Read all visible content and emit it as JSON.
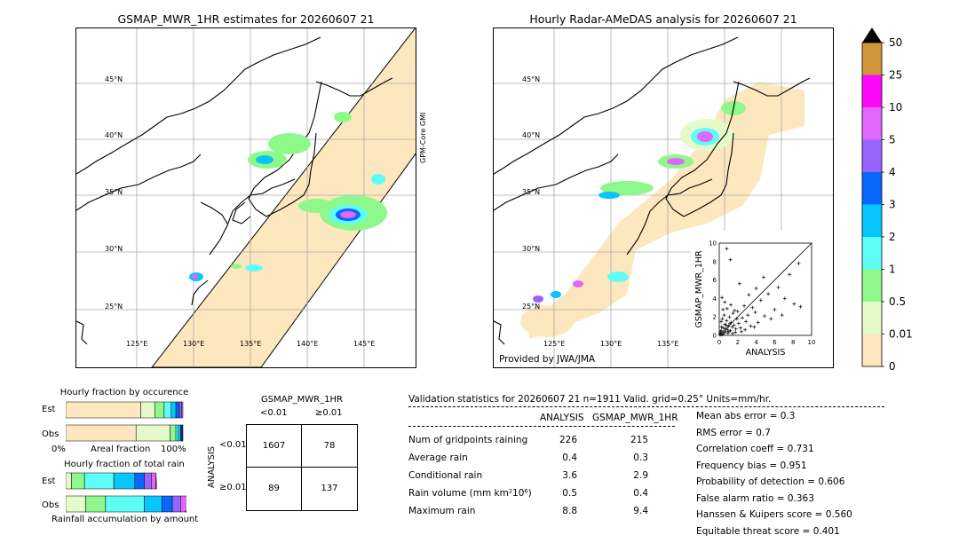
{
  "left_map": {
    "title": "GSMAP_MWR_1HR estimates for 20260607 21",
    "lat_labels": [
      "45°N",
      "40°N",
      "35°N",
      "30°N",
      "25°N"
    ],
    "lon_labels": [
      "125°E",
      "130°E",
      "135°E",
      "140°E",
      "145°E"
    ],
    "swath_label": "GPM-Core GMI"
  },
  "right_map": {
    "title": "Hourly Radar-AMeDAS analysis for 20260607 21",
    "lat_labels": [
      "45°N",
      "40°N",
      "35°N",
      "30°N",
      "25°N"
    ],
    "lon_labels": [
      "125°E",
      "130°E",
      "135°E"
    ],
    "credit": "Provided by JWA/JMA"
  },
  "colorbar": {
    "labels": [
      "0",
      "0.01",
      "0.5",
      "1",
      "2",
      "3",
      "4",
      "5",
      "10",
      "25",
      "50"
    ],
    "colors": [
      "#fde7bf",
      "#e4fbc9",
      "#8ef98a",
      "#5ffdf8",
      "#08c6fb",
      "#0768fb",
      "#9765fb",
      "#e067fb",
      "#fd08f8",
      "#cf9538"
    ],
    "over_color": "#000000"
  },
  "scatter": {
    "xlabel": "ANALYSIS",
    "ylabel": "GSMAP_MWR_1HR",
    "ticks": [
      "0",
      "2",
      "4",
      "6",
      "8",
      "10"
    ]
  },
  "fraction_occurrence": {
    "title": "Hourly fraction by occurence",
    "row_labels": [
      "Est",
      "Obs"
    ],
    "axis_left": "0%",
    "axis_mid": "Areal fraction",
    "axis_right": "100%"
  },
  "fraction_total": {
    "title": "Hourly fraction of total rain",
    "row_labels": [
      "Est",
      "Obs"
    ],
    "axis_label": "Rainfall accumulation by amount"
  },
  "contingency": {
    "title": "GSMAP_MWR_1HR",
    "col_labels": [
      "<0.01",
      "≥0.01"
    ],
    "row_axis": "ANALYSIS",
    "row_labels": [
      "<0.01",
      "≥0.01"
    ],
    "cells": [
      [
        "1607",
        "78"
      ],
      [
        "89",
        "137"
      ]
    ]
  },
  "validation": {
    "header": "Validation statistics for 20260607 21  n=1911 Valid. grid=0.25° Units=mm/hr.",
    "col_analysis": "ANALYSIS",
    "col_gsmap": "GSMAP_MWR_1HR",
    "rows": [
      {
        "label": "Num of gridpoints raining",
        "analysis": "226",
        "gsmap": "215"
      },
      {
        "label": "Average rain",
        "analysis": "0.4",
        "gsmap": "0.3"
      },
      {
        "label": "Conditional rain",
        "analysis": "3.6",
        "gsmap": "2.9"
      },
      {
        "label": "Rain volume (mm km²10⁶)",
        "analysis": "0.5",
        "gsmap": "0.4"
      },
      {
        "label": "Maximum rain",
        "analysis": "8.8",
        "gsmap": "9.4"
      }
    ],
    "scores": [
      "Mean abs error =    0.3",
      "RMS error =    0.7",
      "Correlation coeff =  0.731",
      "Frequency bias =  0.951",
      "Probability of detection =  0.606",
      "False alarm ratio =  0.363",
      "Hanssen & Kuipers score =  0.560",
      "Equitable threat score =  0.401"
    ]
  },
  "chart_data": [
    {
      "type": "scatter",
      "xlabel": "ANALYSIS",
      "ylabel": "GSMAP_MWR_1HR",
      "xlim": [
        0,
        10
      ],
      "ylim": [
        0,
        10
      ],
      "points": [
        [
          0.1,
          0.2
        ],
        [
          0.2,
          0.5
        ],
        [
          0.3,
          0.1
        ],
        [
          0.4,
          0.8
        ],
        [
          0.5,
          0.3
        ],
        [
          0.6,
          1.2
        ],
        [
          0.7,
          0.4
        ],
        [
          0.8,
          1.6
        ],
        [
          0.9,
          0.6
        ],
        [
          1.0,
          1.0
        ],
        [
          1.1,
          2.0
        ],
        [
          1.2,
          0.5
        ],
        [
          1.3,
          1.4
        ],
        [
          1.4,
          0.9
        ],
        [
          1.5,
          2.4
        ],
        [
          1.6,
          1.1
        ],
        [
          1.8,
          0.7
        ],
        [
          1.9,
          1.8
        ],
        [
          2.0,
          2.6
        ],
        [
          2.1,
          1.3
        ],
        [
          2.3,
          0.8
        ],
        [
          2.5,
          1.9
        ],
        [
          2.7,
          3.2
        ],
        [
          2.9,
          1.5
        ],
        [
          3.1,
          2.2
        ],
        [
          3.4,
          1.0
        ],
        [
          3.6,
          3.0
        ],
        [
          3.9,
          2.5
        ],
        [
          4.2,
          1.4
        ],
        [
          4.5,
          3.8
        ],
        [
          4.9,
          2.1
        ],
        [
          5.3,
          4.5
        ],
        [
          5.6,
          1.8
        ],
        [
          6.0,
          2.8
        ],
        [
          6.4,
          5.2
        ],
        [
          6.8,
          2.2
        ],
        [
          7.1,
          4.0
        ],
        [
          7.6,
          6.6
        ],
        [
          8.1,
          3.4
        ],
        [
          8.6,
          7.8
        ],
        [
          8.8,
          3.1
        ],
        [
          0.2,
          1.5
        ],
        [
          0.4,
          2.8
        ],
        [
          0.6,
          3.6
        ],
        [
          0.3,
          4.1
        ],
        [
          1.2,
          8.2
        ],
        [
          0.8,
          9.4
        ],
        [
          2.2,
          5.6
        ],
        [
          4.8,
          6.3
        ],
        [
          0.1,
          0.05
        ],
        [
          0.15,
          0.4
        ],
        [
          0.25,
          0.9
        ],
        [
          0.35,
          1.8
        ],
        [
          0.45,
          0.15
        ],
        [
          0.55,
          2.2
        ],
        [
          0.65,
          0.7
        ],
        [
          0.75,
          1.1
        ],
        [
          0.85,
          2.9
        ],
        [
          0.95,
          0.25
        ],
        [
          1.05,
          0.45
        ],
        [
          1.15,
          1.3
        ],
        [
          1.25,
          3.3
        ],
        [
          1.45,
          0.2
        ],
        [
          1.65,
          2.7
        ],
        [
          1.75,
          0.35
        ],
        [
          2.4,
          0.4
        ],
        [
          2.8,
          0.6
        ],
        [
          3.2,
          4.4
        ],
        [
          3.8,
          0.9
        ],
        [
          4.0,
          5.1
        ]
      ],
      "note_line": "1:1 reference line"
    },
    {
      "type": "bar",
      "title": "Hourly fraction by occurence",
      "categories": [
        "Est",
        "Obs"
      ],
      "series": [
        {
          "values": [
            0.64,
            0.6
          ],
          "color": "#fde7bf"
        },
        {
          "values": [
            0.12,
            0.29
          ],
          "color": "#e4fbc9"
        },
        {
          "values": [
            0.08,
            0.05
          ],
          "color": "#8ef98a"
        },
        {
          "values": [
            0.06,
            0.02
          ],
          "color": "#5ffdf8"
        },
        {
          "values": [
            0.04,
            0.02
          ],
          "color": "#08c6fb"
        },
        {
          "values": [
            0.03,
            0.01
          ],
          "color": "#0768fb"
        },
        {
          "values": [
            0.02,
            0.005
          ],
          "color": "#9765fb"
        },
        {
          "values": [
            0.01,
            0.005
          ],
          "color": "#e067fb"
        }
      ]
    },
    {
      "type": "bar",
      "title": "Hourly fraction of total rain",
      "categories": [
        "Est",
        "Obs"
      ],
      "series": [
        {
          "values": [
            0.0,
            0.0
          ],
          "color": "#fde7bf"
        },
        {
          "values": [
            0.05,
            0.17
          ],
          "color": "#e4fbc9"
        },
        {
          "values": [
            0.11,
            0.17
          ],
          "color": "#8ef98a"
        },
        {
          "values": [
            0.25,
            0.33
          ],
          "color": "#5ffdf8"
        },
        {
          "values": [
            0.18,
            0.15
          ],
          "color": "#08c6fb"
        },
        {
          "values": [
            0.08,
            0.09
          ],
          "color": "#0768fb"
        },
        {
          "values": [
            0.06,
            0.07
          ],
          "color": "#9765fb"
        },
        {
          "values": [
            0.04,
            0.14
          ],
          "color": "#e067fb"
        }
      ]
    }
  ]
}
